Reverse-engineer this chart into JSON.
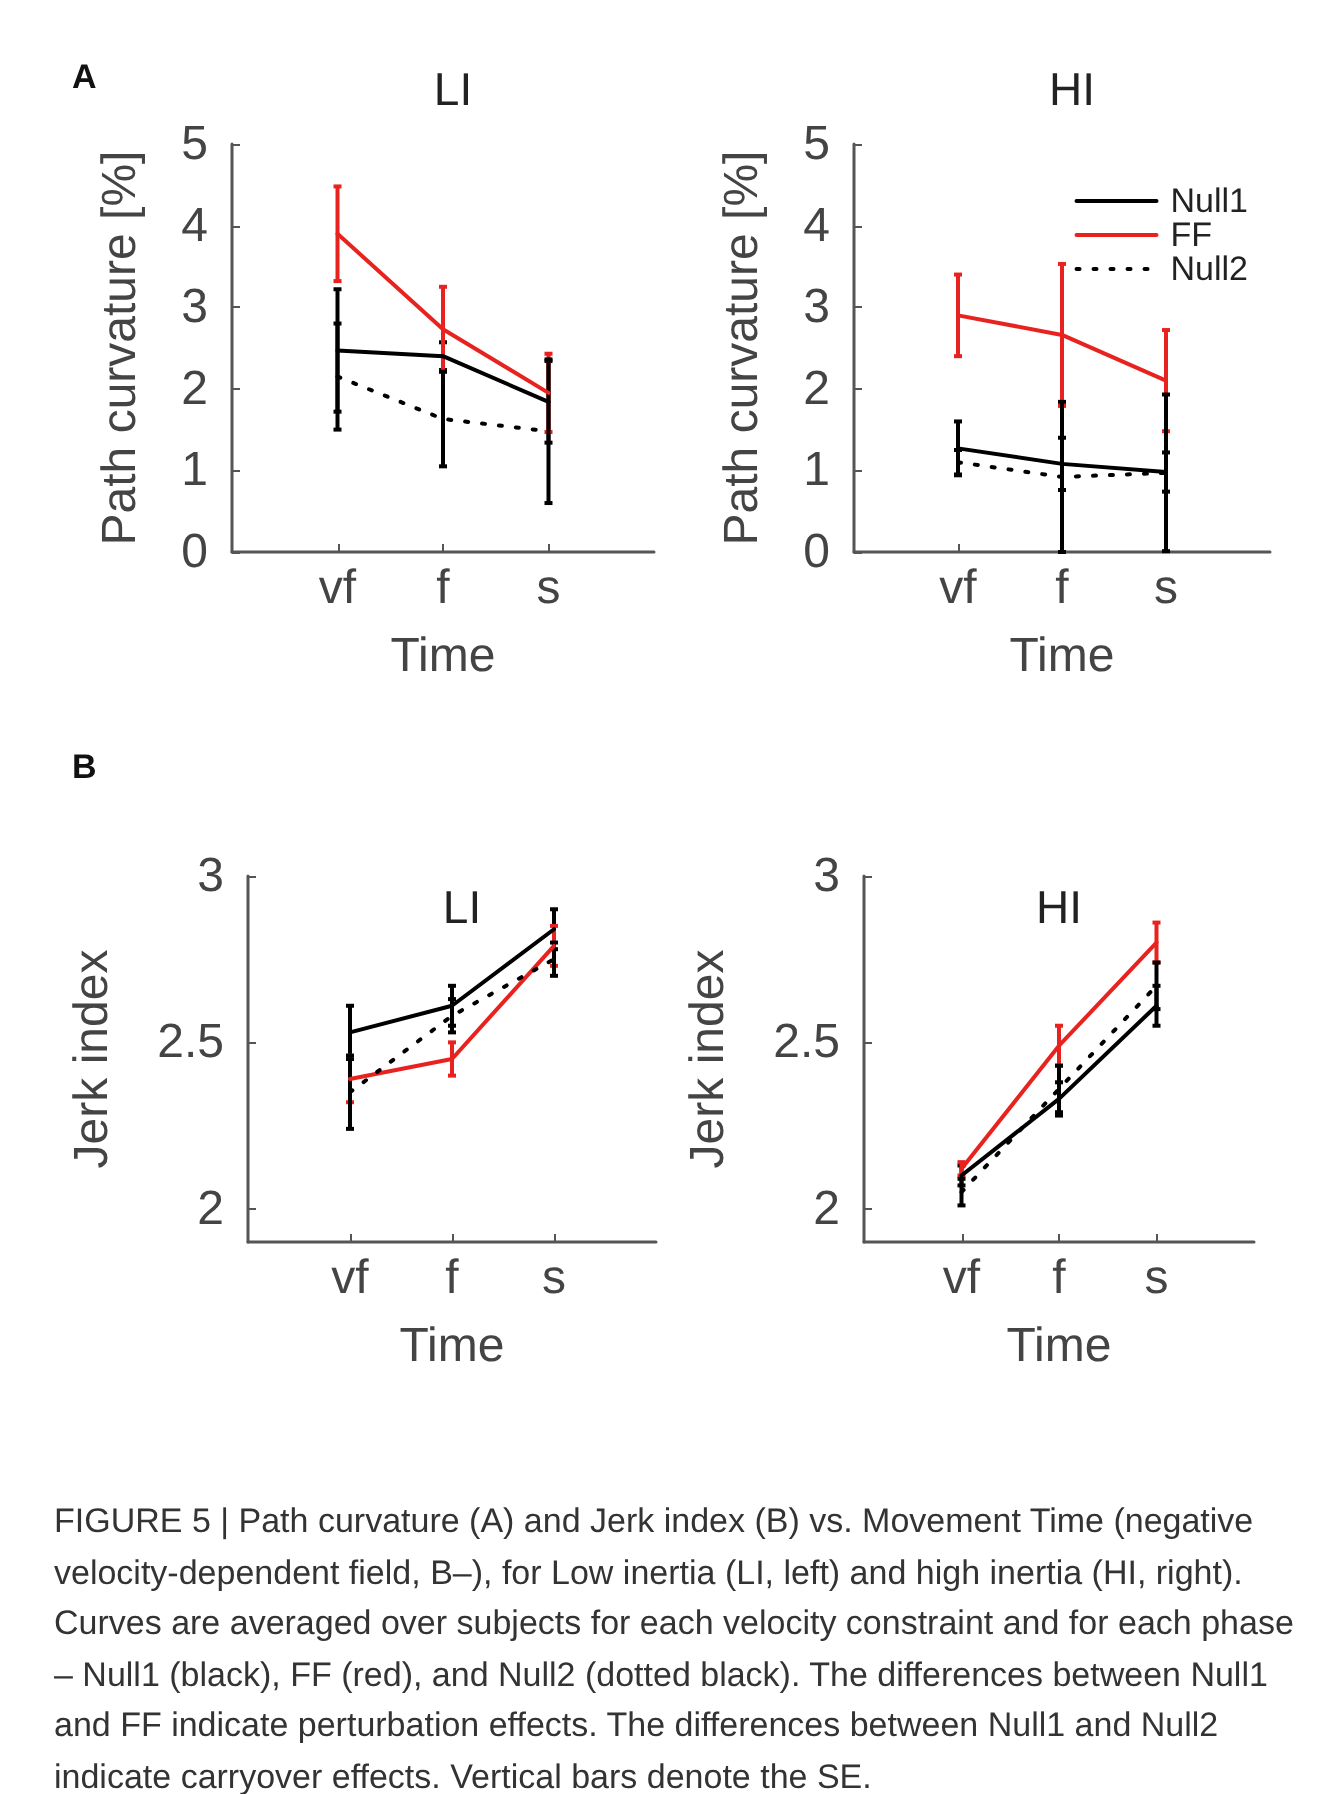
{
  "chart_data": [
    {
      "type": "line",
      "title": "LI",
      "xlabel": "Time",
      "ylabel": "Path curvature [%]",
      "categories": [
        "vf",
        "f",
        "s"
      ],
      "ylim": [
        0,
        5
      ],
      "yticks": [
        0,
        1,
        2,
        3,
        4,
        5
      ],
      "marker": "none",
      "annotations": [
        "A"
      ],
      "series": [
        {
          "color": "#000000",
          "values": [
            2.47,
            2.4,
            1.84
          ],
          "errors": [
            0.75,
            0.17,
            0.5
          ]
        },
        {
          "color": "#e8231f",
          "values": [
            3.9,
            2.73,
            1.95
          ],
          "errors": [
            0.58,
            0.52,
            0.48
          ]
        },
        {
          "color": "#000000",
          "line_style": "dotted",
          "values": [
            2.15,
            1.63,
            1.48
          ],
          "errors": [
            0.65,
            0.58,
            0.88
          ]
        }
      ]
    },
    {
      "type": "line",
      "title": "HI",
      "xlabel": "Time",
      "ylabel": "Path curvature [%]",
      "categories": [
        "vf",
        "f",
        "s"
      ],
      "ylim": [
        0,
        5
      ],
      "yticks": [
        0,
        1,
        2,
        3,
        4,
        5
      ],
      "marker": "none",
      "legend": "top right",
      "series": [
        {
          "name": "Null1",
          "color": "#000000",
          "values": [
            1.27,
            1.08,
            0.98
          ],
          "errors": [
            0.33,
            0.32,
            0.24
          ]
        },
        {
          "name": "FF",
          "color": "#e8231f",
          "values": [
            2.9,
            2.66,
            2.1
          ],
          "errors": [
            0.5,
            0.87,
            0.62
          ]
        },
        {
          "name": "Null2",
          "color": "#000000",
          "line_style": "dotted",
          "values": [
            1.1,
            0.92,
            0.97
          ],
          "errors": [
            0.15,
            0.92,
            0.96
          ]
        }
      ]
    },
    {
      "type": "line",
      "title": "LI",
      "xlabel": "Time",
      "ylabel": "Jerk index",
      "categories": [
        "vf",
        "f",
        "s"
      ],
      "ylim": [
        1.9,
        3
      ],
      "yticks": [
        2,
        2.5,
        3
      ],
      "marker": "none",
      "annotations": [
        "B"
      ],
      "series": [
        {
          "color": "#000000",
          "values": [
            2.53,
            2.61,
            2.84
          ],
          "errors": [
            0.08,
            0.06,
            0.06
          ]
        },
        {
          "color": "#e8231f",
          "values": [
            2.39,
            2.45,
            2.79
          ],
          "errors": [
            0.07,
            0.05,
            0.06
          ]
        },
        {
          "color": "#000000",
          "line_style": "dotted",
          "values": [
            2.35,
            2.58,
            2.75
          ],
          "errors": [
            0.11,
            0.05,
            0.05
          ]
        }
      ]
    },
    {
      "type": "line",
      "title": "HI",
      "xlabel": "Time",
      "ylabel": "Jerk index",
      "categories": [
        "vf",
        "f",
        "s"
      ],
      "ylim": [
        1.9,
        3
      ],
      "yticks": [
        2,
        2.5,
        3
      ],
      "marker": "none",
      "annotations": [
        "FIGURE 5 | Path curvature (A) and Jerk index (B) vs. Movement Time (negative velocity-dependent field, B–), for Low inertia (LI, left) and high inertia (HI, right). Curves are averaged over subjects for each velocity constraint and for each phase – Null1 (black), FF (red), and Null2 (dotted black). The differences between Null1 and FF indicate perturbation effects. The differences between Null1 and Null2 indicate carryover effects. Vertical bars denote the SE."
      ],
      "series": [
        {
          "color": "#000000",
          "values": [
            2.1,
            2.33,
            2.61
          ],
          "errors": [
            0.03,
            0.05,
            0.06
          ]
        },
        {
          "color": "#e8231f",
          "values": [
            2.12,
            2.49,
            2.8
          ],
          "errors": [
            0.02,
            0.06,
            0.06
          ]
        },
        {
          "color": "#000000",
          "line_style": "dotted",
          "values": [
            2.05,
            2.36,
            2.67
          ],
          "errors": [
            0.04,
            0.07,
            0.07
          ]
        }
      ]
    }
  ]
}
